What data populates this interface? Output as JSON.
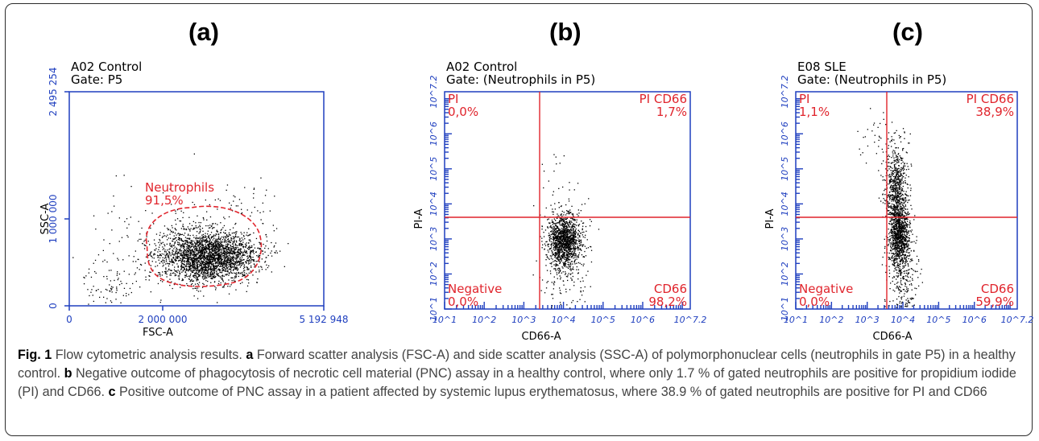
{
  "panel_labels": [
    "(a)",
    "(b)",
    "(c)"
  ],
  "chart_data": [
    {
      "type": "scatter",
      "title": "A02 Control",
      "subtitle": "Gate: P5",
      "xlabel": "FSC-A",
      "ylabel": "SSC-A",
      "x_ticks": [
        "0",
        "2 000 000",
        "5 192 948"
      ],
      "y_ticks": [
        "0",
        "1 000 000",
        "2 495 254"
      ],
      "xlim": [
        0,
        5192948
      ],
      "ylim": [
        0,
        2495254
      ],
      "gate": {
        "name": "Neutrophils",
        "percent": "91,5%"
      },
      "colors": {
        "points": "#000000",
        "gate": "#e0242c",
        "axes": "#1f3fbf",
        "text": "#000000"
      }
    },
    {
      "type": "scatter",
      "title": "A02 Control",
      "subtitle": "Gate: (Neutrophils in P5)",
      "xlabel": "CD66-A",
      "ylabel": "PI-A",
      "x_ticks": [
        "10^1",
        "10^2",
        "10^3",
        "10^4",
        "10^5",
        "10^6",
        "10^7.2"
      ],
      "y_ticks": [
        "10^1",
        "10^2",
        "10^3",
        "10^4",
        "10^5",
        "10^6",
        "10^7.2"
      ],
      "scale": "log",
      "quadrants": [
        {
          "name": "PI",
          "percent": "0,0%",
          "position": "top-left"
        },
        {
          "name": "PI CD66",
          "percent": "1,7%",
          "position": "top-right"
        },
        {
          "name": "Negative",
          "percent": "0,0%",
          "position": "bottom-left"
        },
        {
          "name": "CD66",
          "percent": "98,2%",
          "position": "bottom-right"
        }
      ]
    },
    {
      "type": "scatter",
      "title": "E08 SLE",
      "subtitle": "Gate: (Neutrophils in P5)",
      "xlabel": "CD66-A",
      "ylabel": "PI-A",
      "x_ticks": [
        "10^1",
        "10^2",
        "10^3",
        "10^4",
        "10^5",
        "10^6",
        "10^7.2"
      ],
      "y_ticks": [
        "10^1",
        "10^2",
        "10^3",
        "10^4",
        "10^5",
        "10^6",
        "10^7.2"
      ],
      "scale": "log",
      "quadrants": [
        {
          "name": "PI",
          "percent": "1,1%",
          "position": "top-left"
        },
        {
          "name": "PI CD66",
          "percent": "38,9%",
          "position": "top-right"
        },
        {
          "name": "Negative",
          "percent": "0,0%",
          "position": "bottom-left"
        },
        {
          "name": "CD66",
          "percent": "59,9%",
          "position": "bottom-right"
        }
      ]
    }
  ],
  "caption": {
    "fig_label": "Fig. 1",
    "title": "Flow cytometric analysis results.",
    "a_label": "a",
    "a_text": "Forward scatter analysis (FSC-A) and side scatter analysis (SSC-A) of polymorphonuclear cells (neutrophils in gate P5) in a healthy control.",
    "b_label": "b",
    "b_text": "Negative outcome of phagocytosis of necrotic cell material (PNC) assay in a healthy control, where only 1.7 % of gated neutrophils are positive for propidium iodide (PI) and CD66.",
    "c_label": "c",
    "c_text": "Positive outcome of PNC assay in a patient affected by systemic lupus erythematosus, where 38.9 % of gated neutrophils are positive for PI and CD66"
  }
}
